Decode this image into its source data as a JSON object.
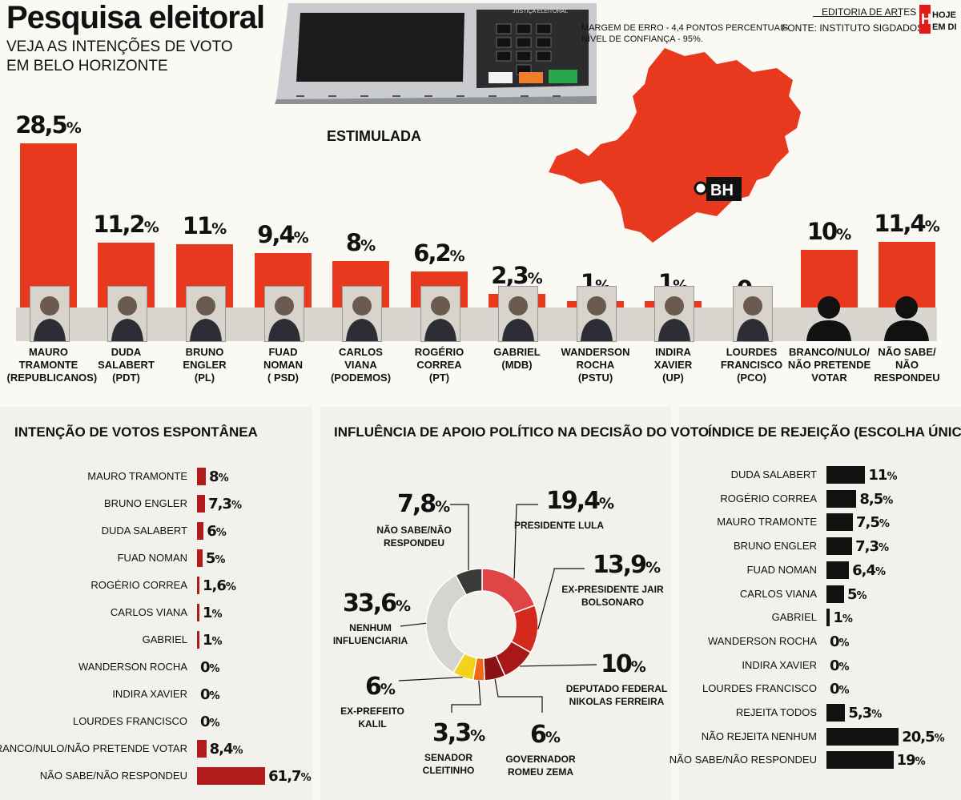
{
  "header": {
    "title": "Pesquisa eleitoral",
    "subtitle_line1": "VEJA AS INTENÇÕES DE VOTO",
    "subtitle_line2": "EM BELO HORIZONTE",
    "margin_line1": "MARGEM DE ERRO - 4,4 PONTOS PERCENTUAIS",
    "margin_line2": "NÍVEL DE CONFIANÇA - 95%.",
    "editoria": "EDITORIA DE ARTES",
    "fonte": "FONTE: INSTITUTO SIGDADOS",
    "logo_text": "HOJE EM DIA",
    "urna_label": "JUSTIÇA ELEITORAL",
    "urna_keys": [
      "BRANCO",
      "CORRIGE",
      "CONFIRMA"
    ],
    "map_label": "BH"
  },
  "colors": {
    "accent": "#e8391f",
    "dark_red": "#b01c1c",
    "black": "#111111",
    "band": "#d9d6cf"
  },
  "chart_data": [
    {
      "type": "bar",
      "title": "ESTIMULADA",
      "categories": [
        "MAURO TRAMONTE (REPUBLICANOS)",
        "DUDA SALABERT (PDT)",
        "BRUNO ENGLER (PL)",
        "FUAD NOMAN ( PSD)",
        "CARLOS VIANA (PODEMOS)",
        "ROGÉRIO CORREA (PT)",
        "GABRIEL (MDB)",
        "WANDERSON ROCHA (PSTU)",
        "INDIRA XAVIER (UP)",
        "LOURDES FRANCISCO (PCO)",
        "BRANCO/NULO/ NÃO PRETENDE VOTAR",
        "NÃO SABE/ NÃO RESPONDEU"
      ],
      "label_lines": [
        [
          "MAURO",
          "TRAMONTE",
          "(REPUBLICANOS)"
        ],
        [
          "DUDA",
          "SALABERT",
          "(PDT)"
        ],
        [
          "BRUNO",
          "ENGLER",
          "(PL)"
        ],
        [
          "FUAD",
          "NOMAN",
          "( PSD)"
        ],
        [
          "CARLOS",
          "VIANA",
          "(PODEMOS)"
        ],
        [
          "ROGÉRIO",
          "CORREA",
          "(PT)"
        ],
        [
          "GABRIEL",
          "(MDB)"
        ],
        [
          "WANDERSON",
          "ROCHA",
          "(PSTU)"
        ],
        [
          "INDIRA",
          "XAVIER",
          "(UP)"
        ],
        [
          "LOURDES",
          "FRANCISCO",
          "(PCO)"
        ],
        [
          "BRANCO/NULO/",
          "NÃO PRETENDE",
          "VOTAR"
        ],
        [
          "NÃO SABE/",
          "NÃO RESPONDEU"
        ]
      ],
      "values": [
        28.5,
        11.2,
        11,
        9.4,
        8,
        6.2,
        2.3,
        1,
        1,
        0,
        10,
        11.4
      ],
      "value_labels": [
        "28,5",
        "11,2",
        "11",
        "9,4",
        "8",
        "6,2",
        "2,3",
        "1",
        "1",
        "0",
        "10",
        "11,4"
      ],
      "unit": "%",
      "ylim": [
        0,
        30
      ]
    },
    {
      "type": "bar",
      "orientation": "horizontal",
      "title": "INTENÇÃO DE VOTOS ESPONTÂNEA",
      "categories": [
        "MAURO TRAMONTE",
        "BRUNO ENGLER",
        "DUDA SALABERT",
        "FUAD NOMAN",
        "ROGÉRIO CORREA",
        "CARLOS VIANA",
        "GABRIEL",
        "WANDERSON ROCHA",
        "INDIRA XAVIER",
        "LOURDES FRANCISCO",
        "BRANCO/NULO/NÃO PRETENDE VOTAR",
        "NÃO SABE/NÃO RESPONDEU"
      ],
      "values": [
        8,
        7.3,
        6,
        5,
        1.6,
        1,
        1,
        0,
        0,
        0,
        8.4,
        61.7
      ],
      "value_labels": [
        "8",
        "7,3",
        "6",
        "5",
        "1,6",
        "1",
        "1",
        "0",
        "0",
        "0",
        "8,4",
        "61,7"
      ],
      "unit": "%"
    },
    {
      "type": "pie",
      "title": "INFLUÊNCIA DE APOIO POLÍTICO NA DECISÃO DO VOTO",
      "slices": [
        {
          "label": "PRESIDENTE LULA",
          "value": 19.4,
          "value_label": "19,4",
          "color": "#e04545"
        },
        {
          "label": "EX-PRESIDENTE JAIR BOLSONARO",
          "value": 13.9,
          "value_label": "13,9",
          "color": "#d42a1e"
        },
        {
          "label": "DEPUTADO FEDERAL NIKOLAS FERREIRA",
          "value": 10,
          "value_label": "10",
          "color": "#a81818"
        },
        {
          "label": "GOVERNADOR ROMEU ZEMA",
          "value": 6,
          "value_label": "6",
          "color": "#8a1212"
        },
        {
          "label": "SENADOR CLEITINHO",
          "value": 3.3,
          "value_label": "3,3",
          "color": "#ee6a16"
        },
        {
          "label": "EX-PREFEITO KALIL",
          "value": 6,
          "value_label": "6",
          "color": "#f2d21b"
        },
        {
          "label": "NENHUM INFLUENCIARIA",
          "value": 33.6,
          "value_label": "33,6",
          "color": "#d6d4d0"
        },
        {
          "label": "NÃO SABE/NÃO RESPONDEU",
          "value": 7.8,
          "value_label": "7,8",
          "color": "#3a3a3a"
        }
      ],
      "unit": "%"
    },
    {
      "type": "bar",
      "orientation": "horizontal",
      "title": "ÍNDICE DE REJEIÇÃO (ESCOLHA ÚNICA)",
      "categories": [
        "DUDA SALABERT",
        "ROGÉRIO CORREA",
        "MAURO TRAMONTE",
        "BRUNO ENGLER",
        "FUAD NOMAN",
        "CARLOS VIANA",
        "GABRIEL",
        "WANDERSON ROCHA",
        "INDIRA XAVIER",
        "LOURDES FRANCISCO",
        "REJEITA TODOS",
        "NÃO REJEITA NENHUM",
        "NÃO SABE/NÃO RESPONDEU"
      ],
      "values": [
        11,
        8.5,
        7.5,
        7.3,
        6.4,
        5,
        1,
        0,
        0,
        0,
        5.3,
        20.5,
        19
      ],
      "value_labels": [
        "11",
        "8,5",
        "7,5",
        "7,3",
        "6,4",
        "5",
        "1",
        "0",
        "0",
        "0",
        "5,3",
        "20,5",
        "19"
      ],
      "unit": "%"
    }
  ]
}
